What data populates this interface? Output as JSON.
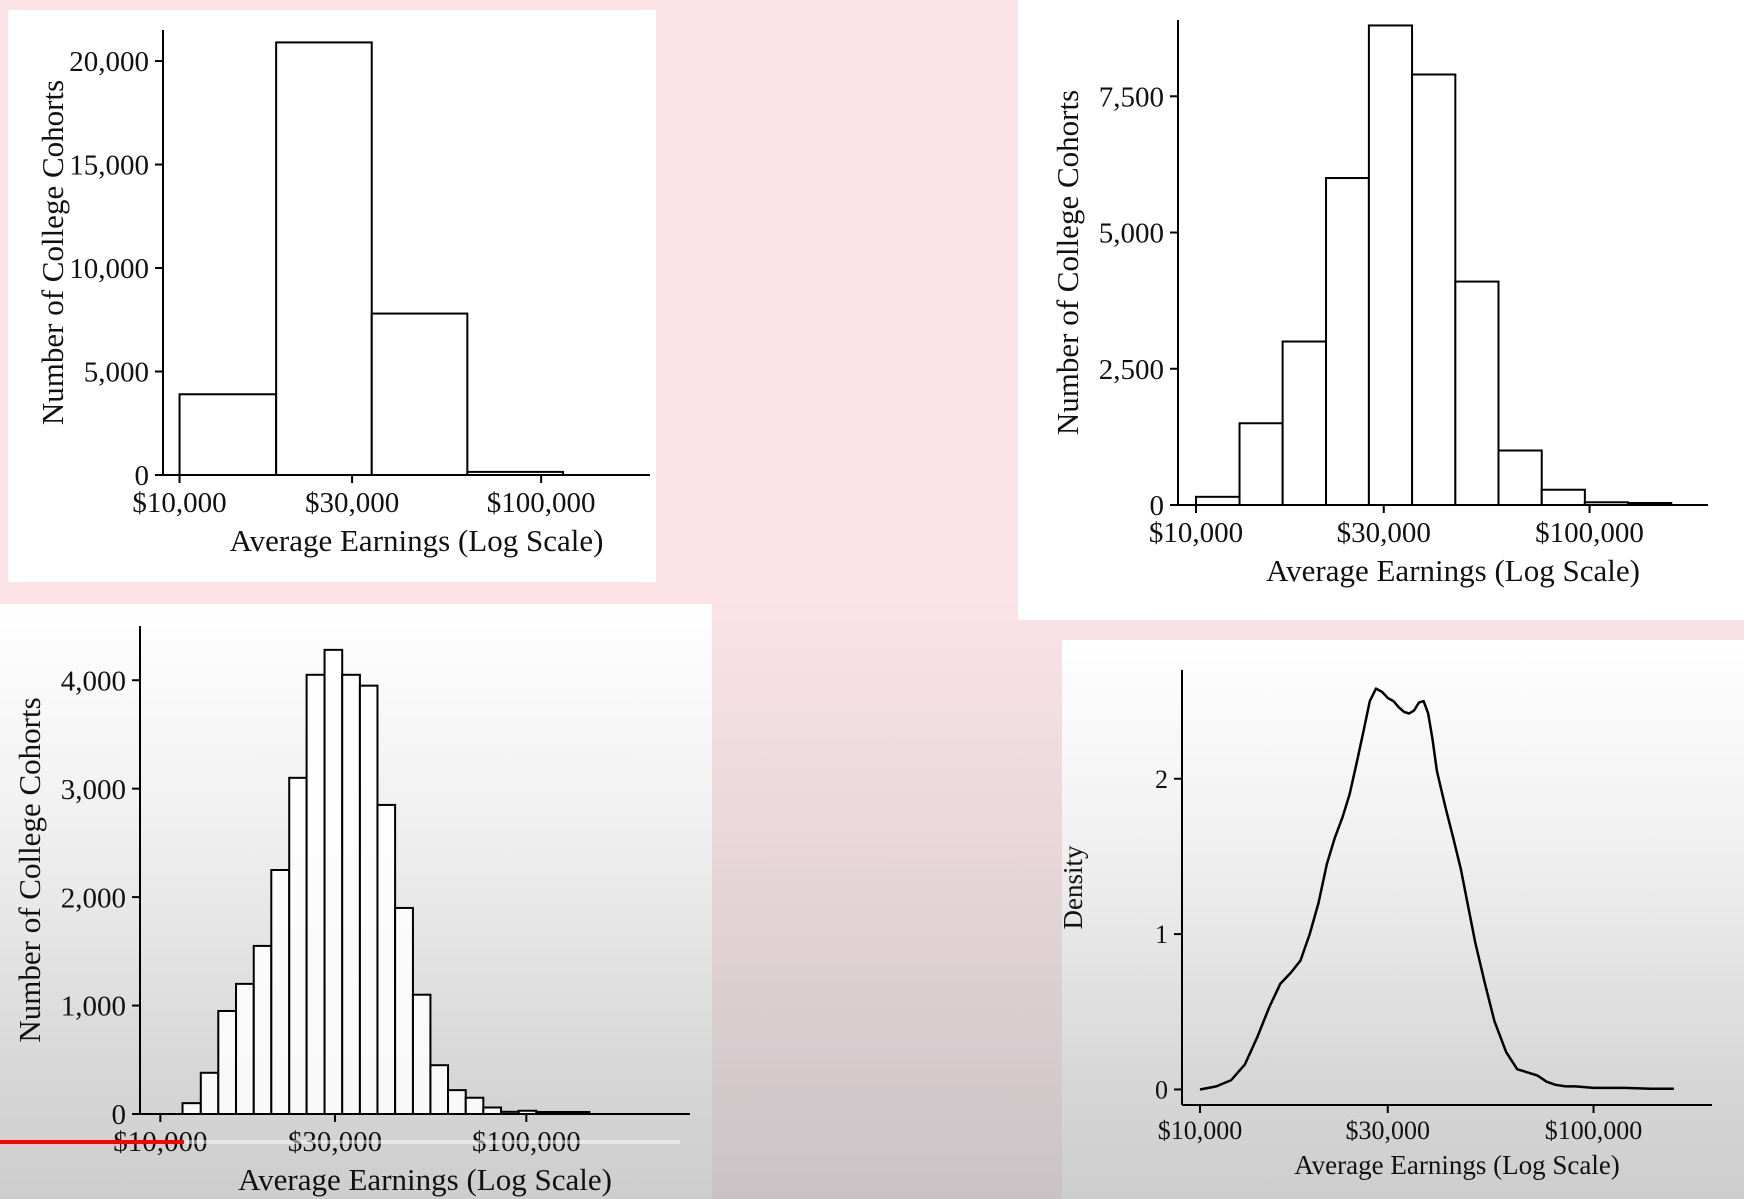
{
  "video": {
    "progress_fraction": 0.27
  },
  "chart_data": [
    {
      "type": "bar",
      "position": "top-left",
      "xlabel": "Average Earnings (Log Scale)",
      "ylabel": "Number of College Cohorts",
      "x_scale": "log",
      "x_ticks": [
        10000,
        30000,
        100000
      ],
      "x_tick_labels": [
        "$10,000",
        "$30,000",
        "$100,000"
      ],
      "y_ticks": [
        0,
        5000,
        10000,
        15000,
        20000
      ],
      "y_tick_labels": [
        "0",
        "5,000",
        "10,000",
        "15,000",
        "20,000"
      ],
      "ylim": [
        0,
        21500
      ],
      "xlim": [
        9000,
        200000
      ],
      "bin_edges": [
        10000,
        18500,
        34000,
        62500,
        115000
      ],
      "values": [
        3900,
        20900,
        7800,
        150
      ]
    },
    {
      "type": "bar",
      "position": "top-right",
      "xlabel": "Average Earnings (Log Scale)",
      "ylabel": "Number of College Cohorts",
      "x_scale": "log",
      "x_ticks": [
        10000,
        30000,
        100000
      ],
      "x_tick_labels": [
        "$10,000",
        "$30,000",
        "$100,000"
      ],
      "y_ticks": [
        0,
        2500,
        5000,
        7500
      ],
      "y_tick_labels": [
        "0",
        "2,500",
        "5,000",
        "7,500"
      ],
      "ylim": [
        0,
        8900
      ],
      "xlim": [
        9000,
        200000
      ],
      "bin_edges": [
        10000,
        12900,
        16600,
        21400,
        27500,
        35400,
        45600,
        58700,
        75600,
        97300,
        125300,
        161300
      ],
      "values": [
        150,
        1500,
        3000,
        6000,
        8800,
        7900,
        4100,
        1000,
        280,
        50,
        20
      ]
    },
    {
      "type": "bar",
      "position": "bottom-left",
      "xlabel": "Average Earnings (Log Scale)",
      "ylabel": "Number of College Cohorts",
      "x_scale": "log",
      "x_ticks": [
        10000,
        30000,
        100000
      ],
      "x_tick_labels": [
        "$10,000",
        "$30,000",
        "$100,000"
      ],
      "y_ticks": [
        0,
        1000,
        2000,
        3000,
        4000
      ],
      "y_tick_labels": [
        "0",
        "1,000",
        "2,000",
        "3,000",
        "4,000"
      ],
      "ylim": [
        0,
        4500
      ],
      "xlim": [
        8800,
        280000
      ],
      "bin_edges": [
        11500,
        12900,
        14400,
        16100,
        18000,
        20100,
        22500,
        25100,
        28100,
        31400,
        35100,
        39200,
        43800,
        49000,
        54700,
        61100,
        68300,
        76300,
        85300,
        95300,
        106500,
        119000,
        133000,
        148600
      ],
      "values": [
        100,
        380,
        950,
        1200,
        1550,
        2250,
        3100,
        4050,
        4280,
        4050,
        3950,
        2850,
        1900,
        1100,
        450,
        220,
        150,
        60,
        20,
        30,
        15,
        10,
        5
      ]
    },
    {
      "type": "line",
      "position": "bottom-right",
      "xlabel": "Average Earnings (Log Scale)",
      "ylabel": "Density",
      "x_scale": "log",
      "x_ticks": [
        10000,
        30000,
        100000
      ],
      "x_tick_labels": [
        "$10,000",
        "$30,000",
        "$100,000"
      ],
      "y_ticks": [
        0,
        1,
        2
      ],
      "y_tick_labels": [
        "0",
        "1",
        "2"
      ],
      "ylim": [
        -0.1,
        2.7
      ],
      "xlim": [
        9000,
        200000
      ],
      "x": [
        10000,
        11000,
        12000,
        13000,
        14000,
        15000,
        16000,
        17000,
        18000,
        19000,
        20000,
        21000,
        22000,
        23000,
        24000,
        25000,
        26000,
        27000,
        28000,
        29000,
        30000,
        31000,
        32000,
        33000,
        34000,
        35000,
        36000,
        37000,
        38000,
        39000,
        40000,
        42000,
        44000,
        46000,
        48000,
        50000,
        53000,
        56000,
        60000,
        64000,
        68000,
        72000,
        76000,
        80000,
        85000,
        90000,
        100000,
        110000,
        120000,
        140000,
        160000
      ],
      "y": [
        0.0,
        0.02,
        0.06,
        0.16,
        0.34,
        0.53,
        0.68,
        0.75,
        0.83,
        1.0,
        1.2,
        1.45,
        1.62,
        1.75,
        1.9,
        2.1,
        2.3,
        2.5,
        2.58,
        2.56,
        2.52,
        2.5,
        2.46,
        2.43,
        2.42,
        2.44,
        2.49,
        2.5,
        2.42,
        2.25,
        2.05,
        1.82,
        1.62,
        1.42,
        1.18,
        0.95,
        0.68,
        0.44,
        0.24,
        0.13,
        0.11,
        0.09,
        0.05,
        0.03,
        0.02,
        0.02,
        0.01,
        0.01,
        0.01,
        0.005,
        0.005
      ]
    }
  ]
}
